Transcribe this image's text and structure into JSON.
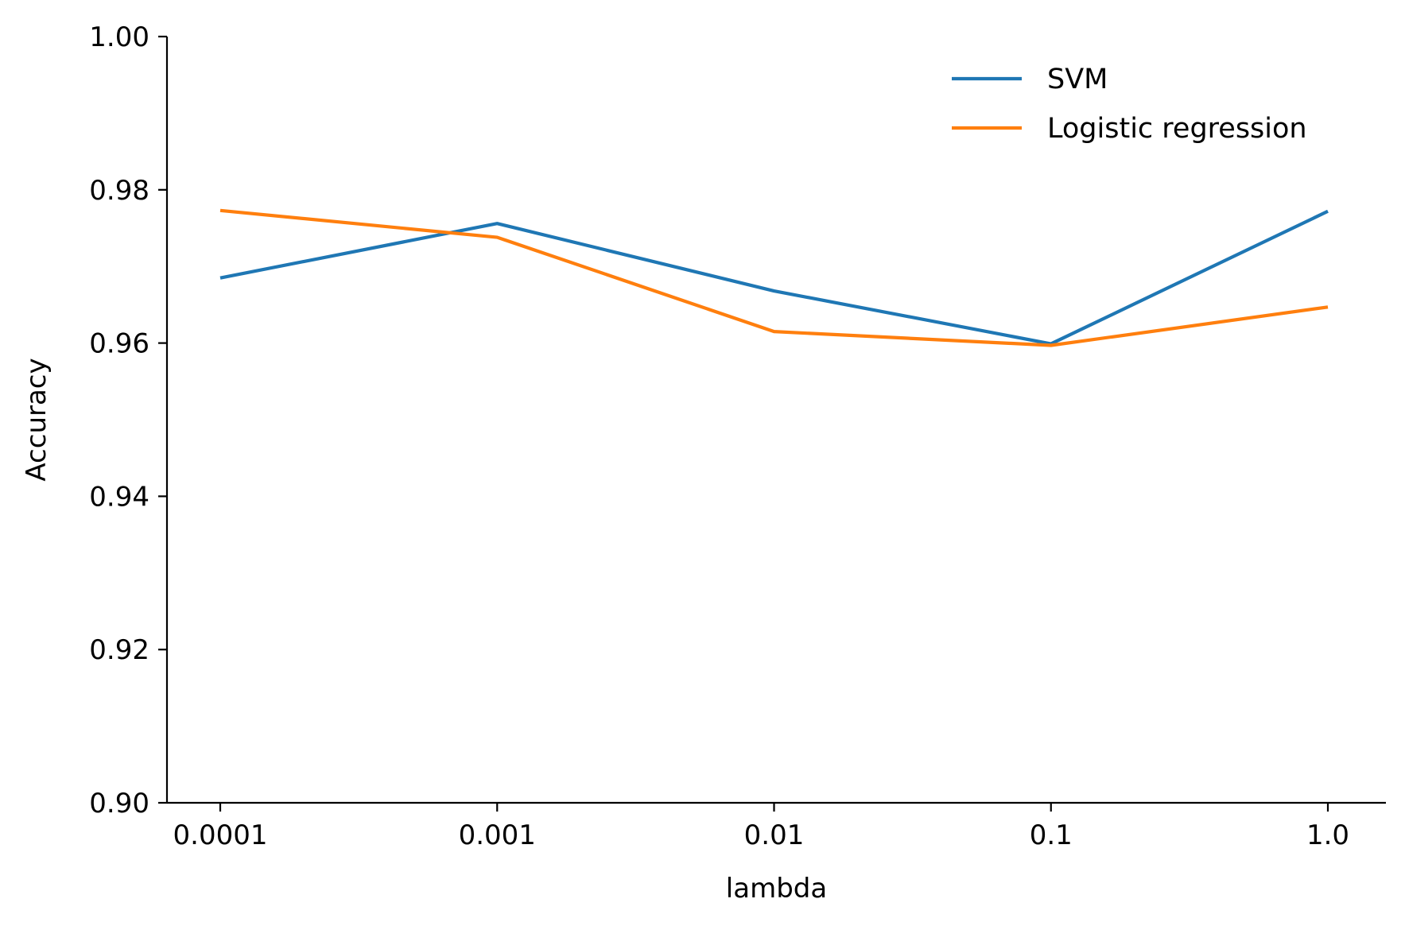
{
  "chart_data": {
    "type": "line",
    "title": "",
    "xlabel": "lambda",
    "ylabel": "Accuracy",
    "categories": [
      "0.0001",
      "0.001",
      "0.01",
      "0.1",
      "1.0"
    ],
    "ylim": [
      0.9,
      1.0
    ],
    "yticks": [
      "0.90",
      "0.92",
      "0.94",
      "0.96",
      "0.98",
      "1.00"
    ],
    "grid": false,
    "legend_position": "top-right",
    "series": [
      {
        "name": "SVM",
        "color": "#1f77b4",
        "values": [
          0.9685,
          0.9756,
          0.9668,
          0.9599,
          0.9772
        ]
      },
      {
        "name": "Logistic regression",
        "color": "#ff7f0e",
        "values": [
          0.9773,
          0.9738,
          0.9615,
          0.9597,
          0.9647
        ]
      }
    ]
  }
}
